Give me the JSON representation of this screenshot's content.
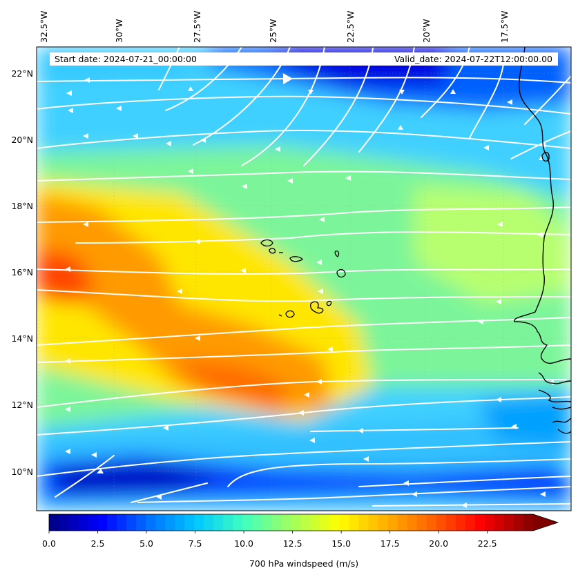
{
  "map": {
    "info_left": "Start date: 2024-07-21_00:00:00",
    "info_right": "Valid_date: 2024-07-22T12:00:00.00",
    "lon_ticks": [
      "32.5°W",
      "30°W",
      "27.5°W",
      "25°W",
      "22.5°W",
      "20°W",
      "17.5°W"
    ],
    "lat_ticks": [
      "22°N",
      "20°N",
      "18°N",
      "16°N",
      "14°N",
      "12°N",
      "10°N"
    ],
    "field_palette": [
      "#00008f",
      "#0000ff",
      "#0070ff",
      "#00c8ff",
      "#40ffbf",
      "#a0ff60",
      "#ffff00",
      "#ffb000",
      "#ff6000",
      "#ff0000",
      "#8f0000"
    ],
    "streamline_color": "#ffffff",
    "coastline_color": "#000000"
  },
  "colorbar": {
    "label": "700 hPa windspeed (m/s)",
    "tick_values": [
      "0.0",
      "2.5",
      "5.0",
      "7.5",
      "10.0",
      "12.5",
      "15.0",
      "17.5",
      "20.0",
      "22.5"
    ],
    "min": 0,
    "max": 25,
    "extend": "max"
  }
}
